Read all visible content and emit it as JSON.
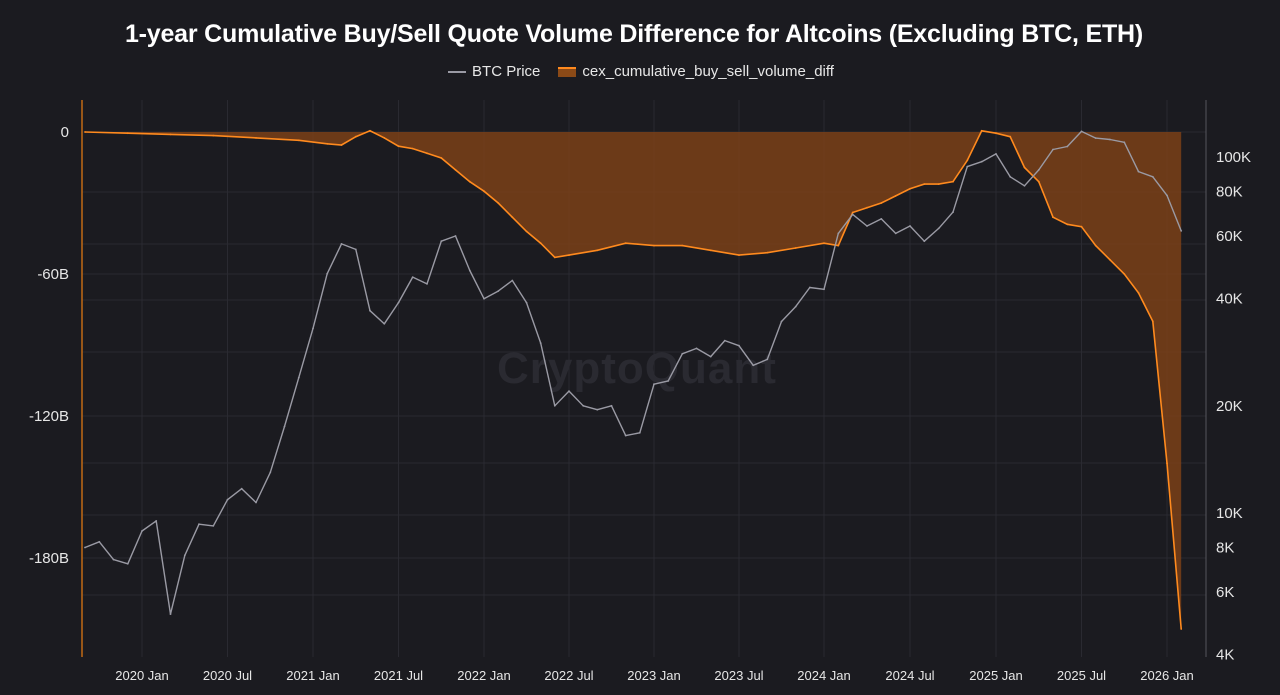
{
  "colors": {
    "background": "#1b1b20",
    "btc_line": "#9a9aa4",
    "cum_fill": "#7a4018",
    "cum_line": "#ff8a1e",
    "grid": "#2a2a31"
  },
  "watermark": "CryptoQuant",
  "chart_data": {
    "type": "line",
    "title": "1-year Cumulative Buy/Sell Quote Volume Difference for Altcoins (Excluding BTC, ETH)",
    "legend": {
      "placement": "top-center",
      "items": [
        {
          "label": "BTC Price",
          "kind": "line",
          "color": "#9a9aa4"
        },
        {
          "label": "cex_cumulative_buy_sell_volume_diff",
          "kind": "area",
          "color": "#ff8a1e"
        }
      ]
    },
    "x_ticks": [
      "2020 Jan",
      "2020 Jul",
      "2021 Jan",
      "2021 Jul",
      "2022 Jan",
      "2022 Jul",
      "2023 Jan",
      "2023 Jul",
      "2024 Jan",
      "2024 Jul",
      "2025 Jan",
      "2025 Jul",
      "2026 Jan"
    ],
    "x_range": [
      "2019-09",
      "2026-02"
    ],
    "grid": true,
    "left_axis": {
      "ticks": [
        0,
        -60,
        -120,
        -180
      ],
      "tick_labels": [
        "0",
        "-60B",
        "-120B",
        "-180B"
      ],
      "range": [
        -212,
        0
      ]
    },
    "right_axis": {
      "scale": "log",
      "ticks": [
        100000,
        80000,
        60000,
        40000,
        20000,
        10000,
        8000,
        6000,
        4000
      ],
      "tick_labels": [
        "100K",
        "80K",
        "60K",
        "40K",
        "20K",
        "10K",
        "8K",
        "6K",
        "4K"
      ],
      "range": [
        4000,
        130000
      ]
    },
    "series": [
      {
        "name": "cex_cumulative_buy_sell_volume_diff",
        "axis": "left",
        "type": "area",
        "unit": "B",
        "x": [
          "2019-09",
          "2019-12",
          "2020-03",
          "2020-06",
          "2020-09",
          "2020-12",
          "2021-02",
          "2021-03",
          "2021-04",
          "2021-05",
          "2021-06",
          "2021-07",
          "2021-08",
          "2021-09",
          "2021-10",
          "2021-11",
          "2021-12",
          "2022-01",
          "2022-02",
          "2022-03",
          "2022-04",
          "2022-05",
          "2022-06",
          "2022-07",
          "2022-09",
          "2022-11",
          "2023-01",
          "2023-03",
          "2023-05",
          "2023-07",
          "2023-09",
          "2023-11",
          "2024-01",
          "2024-02",
          "2024-03",
          "2024-04",
          "2024-05",
          "2024-06",
          "2024-07",
          "2024-08",
          "2024-09",
          "2024-10",
          "2024-11",
          "2024-12",
          "2025-01",
          "2025-02",
          "2025-03",
          "2025-04",
          "2025-05",
          "2025-06",
          "2025-07",
          "2025-08",
          "2025-09",
          "2025-10",
          "2025-11",
          "2025-12",
          "2026-01",
          "2026-02"
        ],
        "values": [
          0,
          -0.5,
          -1,
          -1.5,
          -2.5,
          -3.5,
          -5,
          -5.5,
          -2,
          0.5,
          -2.5,
          -6,
          -7,
          -9,
          -11,
          -16,
          -21,
          -25,
          -30,
          -36,
          -42,
          -47,
          -53,
          -52,
          -50,
          -47,
          -48,
          -48,
          -50,
          -52,
          -51,
          -49,
          -47,
          -48,
          -34,
          -32,
          -30,
          -27,
          -24,
          -22,
          -22,
          -21,
          -12,
          0.5,
          -0.5,
          -2,
          -15,
          -21,
          -36,
          -39,
          -40,
          -48,
          -54,
          -60,
          -68,
          -80,
          -140,
          -210
        ]
      },
      {
        "name": "BTC Price",
        "axis": "right",
        "type": "line",
        "unit": "USD",
        "x": [
          "2019-09",
          "2019-10",
          "2019-11",
          "2019-12",
          "2020-01",
          "2020-02",
          "2020-03",
          "2020-04",
          "2020-05",
          "2020-06",
          "2020-07",
          "2020-08",
          "2020-09",
          "2020-10",
          "2020-11",
          "2020-12",
          "2021-01",
          "2021-02",
          "2021-03",
          "2021-04",
          "2021-05",
          "2021-06",
          "2021-07",
          "2021-08",
          "2021-09",
          "2021-10",
          "2021-11",
          "2021-12",
          "2022-01",
          "2022-02",
          "2022-03",
          "2022-04",
          "2022-05",
          "2022-06",
          "2022-07",
          "2022-08",
          "2022-09",
          "2022-10",
          "2022-11",
          "2022-12",
          "2023-01",
          "2023-02",
          "2023-03",
          "2023-04",
          "2023-05",
          "2023-06",
          "2023-07",
          "2023-08",
          "2023-09",
          "2023-10",
          "2023-11",
          "2023-12",
          "2024-01",
          "2024-02",
          "2024-03",
          "2024-04",
          "2024-05",
          "2024-06",
          "2024-07",
          "2024-08",
          "2024-09",
          "2024-10",
          "2024-11",
          "2024-12",
          "2025-01",
          "2025-02",
          "2025-03",
          "2025-04",
          "2025-05",
          "2025-06",
          "2025-07",
          "2025-08",
          "2025-09",
          "2025-10",
          "2025-11",
          "2025-12",
          "2026-01",
          "2026-02"
        ],
        "values": [
          8000,
          8300,
          7400,
          7200,
          8900,
          9500,
          5200,
          7600,
          9300,
          9200,
          10900,
          11700,
          10700,
          13000,
          17500,
          24000,
          33000,
          47000,
          57000,
          55000,
          37000,
          34000,
          39000,
          46000,
          44000,
          58000,
          60000,
          48000,
          40000,
          42000,
          45000,
          39000,
          30000,
          20000,
          22000,
          20000,
          19500,
          20000,
          16500,
          16800,
          23000,
          23500,
          28000,
          29000,
          27500,
          30500,
          29500,
          26000,
          27000,
          34500,
          38000,
          43000,
          42500,
          61000,
          69000,
          64000,
          67000,
          61000,
          64000,
          58000,
          63000,
          70000,
          94000,
          97000,
          102000,
          88000,
          83000,
          92000,
          105000,
          107000,
          118000,
          113000,
          112000,
          110000,
          91000,
          88000,
          78000,
          62000
        ]
      }
    ]
  }
}
